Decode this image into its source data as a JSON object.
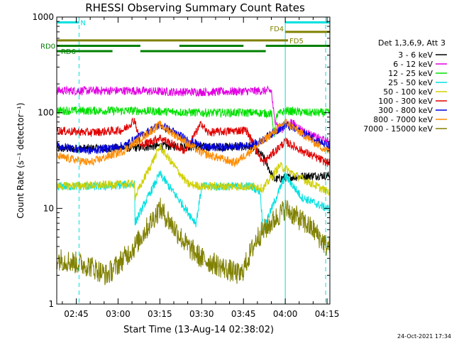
{
  "footer_timestamp": "24-Oct-2021 17:34",
  "chart_data": {
    "type": "line",
    "title": "RHESSI Observing Summary Count Rates",
    "xlabel": "Start Time (13-Aug-14 02:38:02)",
    "ylabel": "Count Rate (s⁻¹ detector⁻¹)",
    "yscale": "log",
    "ylim": [
      1,
      1000
    ],
    "xlim_minutes": [
      158,
      256
    ],
    "yticks": [
      {
        "value": 1,
        "label": "1"
      },
      {
        "value": 10,
        "label": "10"
      },
      {
        "value": 100,
        "label": "100"
      },
      {
        "value": 1000,
        "label": "1000"
      }
    ],
    "xticks": [
      {
        "value": 165,
        "label": "02:45"
      },
      {
        "value": 180,
        "label": "03:00"
      },
      {
        "value": 195,
        "label": "03:15"
      },
      {
        "value": 210,
        "label": "03:30"
      },
      {
        "value": 225,
        "label": "03:45"
      },
      {
        "value": 240,
        "label": "04:00"
      },
      {
        "value": 255,
        "label": "04:15"
      }
    ],
    "legend_title": "Det 1,3,6,9, Att 3",
    "legend_position": "right",
    "series": [
      {
        "name": "3 - 6 keV",
        "color": "#000000",
        "points": [
          [
            158,
            42
          ],
          [
            186,
            43
          ],
          [
            195,
            45
          ],
          [
            210,
            44
          ],
          [
            228,
            44
          ],
          [
            232,
            35
          ],
          [
            236,
            20
          ],
          [
            240,
            21
          ],
          [
            250,
            22
          ],
          [
            255,
            22
          ]
        ]
      },
      {
        "name": "6 - 12 keV",
        "color": "#e000e0",
        "points": [
          [
            158,
            170
          ],
          [
            186,
            170
          ],
          [
            200,
            165
          ],
          [
            214,
            165
          ],
          [
            226,
            168
          ],
          [
            235,
            170
          ],
          [
            236,
            90
          ],
          [
            238,
            65
          ],
          [
            242,
            80
          ],
          [
            248,
            60
          ],
          [
            255,
            50
          ]
        ]
      },
      {
        "name": "12 - 25 keV",
        "color": "#00e000",
        "points": [
          [
            158,
            105
          ],
          [
            186,
            105
          ],
          [
            210,
            100
          ],
          [
            230,
            100
          ],
          [
            235,
            98
          ],
          [
            236,
            60
          ],
          [
            237,
            95
          ],
          [
            240,
            105
          ],
          [
            248,
            100
          ],
          [
            255,
            100
          ]
        ]
      },
      {
        "name": "25 - 50 keV",
        "color": "#00e0e0",
        "points": [
          [
            158,
            17
          ],
          [
            176,
            17
          ],
          [
            186,
            18
          ],
          [
            186,
            7
          ],
          [
            195,
            23
          ],
          [
            208,
            7
          ],
          [
            210,
            17
          ],
          [
            228,
            17
          ],
          [
            231,
            15
          ],
          [
            232,
            6
          ],
          [
            240,
            22
          ],
          [
            246,
            13
          ],
          [
            255,
            10
          ]
        ]
      },
      {
        "name": "50 - 100 keV",
        "color": "#d0d000",
        "points": [
          [
            158,
            17
          ],
          [
            186,
            18
          ],
          [
            186,
            13
          ],
          [
            195,
            44
          ],
          [
            205,
            18
          ],
          [
            210,
            17
          ],
          [
            230,
            17
          ],
          [
            232,
            16
          ],
          [
            238,
            28
          ],
          [
            244,
            22
          ],
          [
            255,
            15
          ]
        ]
      },
      {
        "name": "100 - 300 keV",
        "color": "#e00000",
        "points": [
          [
            158,
            65
          ],
          [
            170,
            62
          ],
          [
            182,
            66
          ],
          [
            186,
            85
          ],
          [
            188,
            45
          ],
          [
            195,
            55
          ],
          [
            204,
            40
          ],
          [
            210,
            78
          ],
          [
            212,
            62
          ],
          [
            226,
            66
          ],
          [
            232,
            30
          ],
          [
            240,
            50
          ],
          [
            246,
            40
          ],
          [
            255,
            30
          ]
        ]
      },
      {
        "name": "300 - 800 keV",
        "color": "#0000e0",
        "points": [
          [
            158,
            45
          ],
          [
            170,
            40
          ],
          [
            182,
            45
          ],
          [
            195,
            75
          ],
          [
            206,
            50
          ],
          [
            212,
            43
          ],
          [
            226,
            45
          ],
          [
            230,
            48
          ],
          [
            240,
            75
          ],
          [
            250,
            55
          ],
          [
            255,
            45
          ]
        ]
      },
      {
        "name": "800 - 7000 keV",
        "color": "#ff8c00",
        "points": [
          [
            158,
            35
          ],
          [
            170,
            30
          ],
          [
            182,
            40
          ],
          [
            195,
            75
          ],
          [
            210,
            38
          ],
          [
            222,
            30
          ],
          [
            230,
            45
          ],
          [
            240,
            80
          ],
          [
            250,
            50
          ],
          [
            255,
            40
          ]
        ]
      },
      {
        "name": "7000 - 15000 keV",
        "color": "#808000",
        "points": [
          [
            158,
            3
          ],
          [
            170,
            2.5
          ],
          [
            176,
            2
          ],
          [
            182,
            3
          ],
          [
            186,
            4
          ],
          [
            195,
            10
          ],
          [
            205,
            4
          ],
          [
            210,
            3
          ],
          [
            224,
            2
          ],
          [
            230,
            5
          ],
          [
            240,
            10
          ],
          [
            250,
            6
          ],
          [
            255,
            4
          ]
        ]
      }
    ],
    "annotations": {
      "N": {
        "label": "N",
        "color": "#00e0e0",
        "segments": [
          [
            158,
            166
          ],
          [
            240,
            256
          ]
        ],
        "level": 880
      },
      "FD4": {
        "label": "FD4",
        "color": "#808000",
        "segments": [
          [
            240,
            256
          ]
        ],
        "level": 700
      },
      "FD5": {
        "label": "FD5",
        "color": "#808000",
        "segments": [
          [
            158,
            241
          ]
        ],
        "level": 570
      },
      "RD0": {
        "label": "RD0",
        "color": "#008000",
        "segments": [
          [
            158,
            188
          ],
          [
            202,
            225
          ],
          [
            233,
            256
          ]
        ],
        "level": 500
      },
      "RD6": {
        "label": "RD6",
        "color": "#008000",
        "segments": [
          [
            158,
            178
          ],
          [
            188,
            233
          ]
        ],
        "level": 440
      }
    },
    "vertical_lines": [
      {
        "x": 166,
        "color": "#00e0e0",
        "dashed": true
      },
      {
        "x": 240,
        "color": "#00e0e0",
        "dashed": false
      },
      {
        "x": 254.5,
        "color": "#00e0e0",
        "dashed": true
      }
    ]
  }
}
